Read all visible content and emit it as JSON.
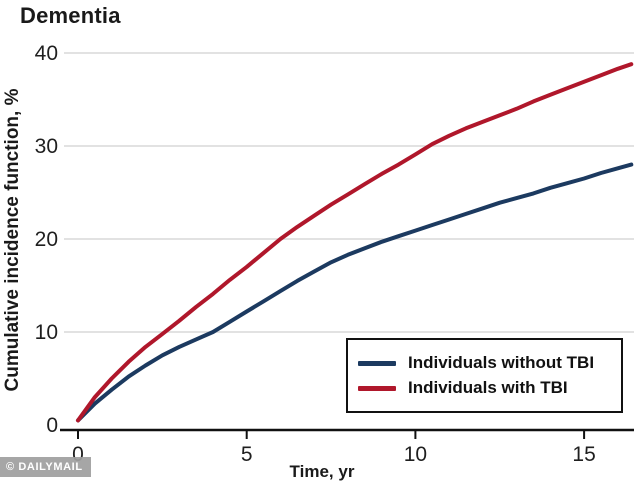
{
  "title": "Dementia",
  "watermark": "© DAILYMAIL",
  "colors": {
    "without_tbi_line": "#1c3a60",
    "with_tbi_line": "#b0172b",
    "gridline": "#d9d9d9",
    "axis": "#111111",
    "text": "#1a1a1a",
    "watermark_bg": "#9e9e9e"
  },
  "chart_data": {
    "type": "line",
    "title": "Dementia",
    "xlabel": "Time, yr",
    "ylabel": "Cumulative incidence function, %",
    "xlim": [
      0,
      16.4
    ],
    "ylim": [
      0,
      40
    ],
    "xticks": [
      0,
      5,
      10,
      15
    ],
    "yticks": [
      0,
      10,
      20,
      30,
      40
    ],
    "grid": "horizontal-at-10-20-30-40",
    "legend_position": "lower-right-box",
    "x": [
      0,
      0.5,
      1,
      1.5,
      2,
      2.5,
      3,
      3.5,
      4,
      4.5,
      5,
      5.5,
      6,
      6.5,
      7,
      7.5,
      8,
      8.5,
      9,
      9.5,
      10,
      10.5,
      11,
      11.5,
      12,
      12.5,
      13,
      13.5,
      14,
      14.5,
      15,
      15.5,
      16,
      16.4
    ],
    "series": [
      {
        "name": "Individuals without TBI",
        "color": "#1c3a60",
        "values": [
          0.5,
          2.3,
          3.8,
          5.2,
          6.4,
          7.5,
          8.4,
          9.2,
          10.0,
          11.1,
          12.2,
          13.3,
          14.4,
          15.5,
          16.5,
          17.5,
          18.3,
          19.0,
          19.7,
          20.3,
          20.9,
          21.5,
          22.1,
          22.7,
          23.3,
          23.9,
          24.4,
          24.9,
          25.5,
          26.0,
          26.5,
          27.1,
          27.6,
          28.0
        ]
      },
      {
        "name": "Individuals with TBI",
        "color": "#b0172b",
        "values": [
          0.5,
          3.0,
          5.0,
          6.8,
          8.4,
          9.8,
          11.2,
          12.7,
          14.1,
          15.6,
          17.0,
          18.5,
          20.0,
          21.3,
          22.5,
          23.7,
          24.8,
          25.9,
          27.0,
          28.0,
          29.1,
          30.2,
          31.1,
          31.9,
          32.6,
          33.3,
          34.0,
          34.8,
          35.5,
          36.2,
          36.9,
          37.6,
          38.3,
          38.8
        ]
      }
    ]
  },
  "legend": {
    "items": [
      {
        "label": "Individuals without TBI",
        "color": "#1c3a60"
      },
      {
        "label": "Individuals with TBI",
        "color": "#b0172b"
      }
    ]
  }
}
